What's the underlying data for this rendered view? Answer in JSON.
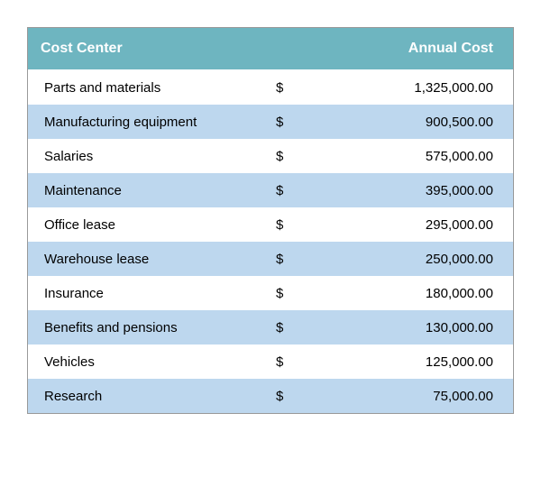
{
  "table": {
    "type": "table",
    "header_background": "#6eb5c0",
    "header_text_color": "#ffffff",
    "row_colors": {
      "odd": "#ffffff",
      "even": "#bdd7ee"
    },
    "text_color": "#000000",
    "border_color": "#999999",
    "font_family": "Arial",
    "header_fontsize": 16,
    "body_fontsize": 15,
    "currency_symbol": "$",
    "columns": [
      {
        "label": "Cost Center",
        "align": "left"
      },
      {
        "label": "Annual Cost",
        "align": "right"
      }
    ],
    "rows": [
      {
        "label": "Parts and materials",
        "value": "1,325,000.00"
      },
      {
        "label": "Manufacturing equipment",
        "value": "900,500.00"
      },
      {
        "label": "Salaries",
        "value": "575,000.00"
      },
      {
        "label": "Maintenance",
        "value": "395,000.00"
      },
      {
        "label": "Office lease",
        "value": "295,000.00"
      },
      {
        "label": "Warehouse lease",
        "value": "250,000.00"
      },
      {
        "label": "Insurance",
        "value": "180,000.00"
      },
      {
        "label": "Benefits and pensions",
        "value": "130,000.00"
      },
      {
        "label": "Vehicles",
        "value": "125,000.00"
      },
      {
        "label": "Research",
        "value": "75,000.00"
      }
    ]
  }
}
